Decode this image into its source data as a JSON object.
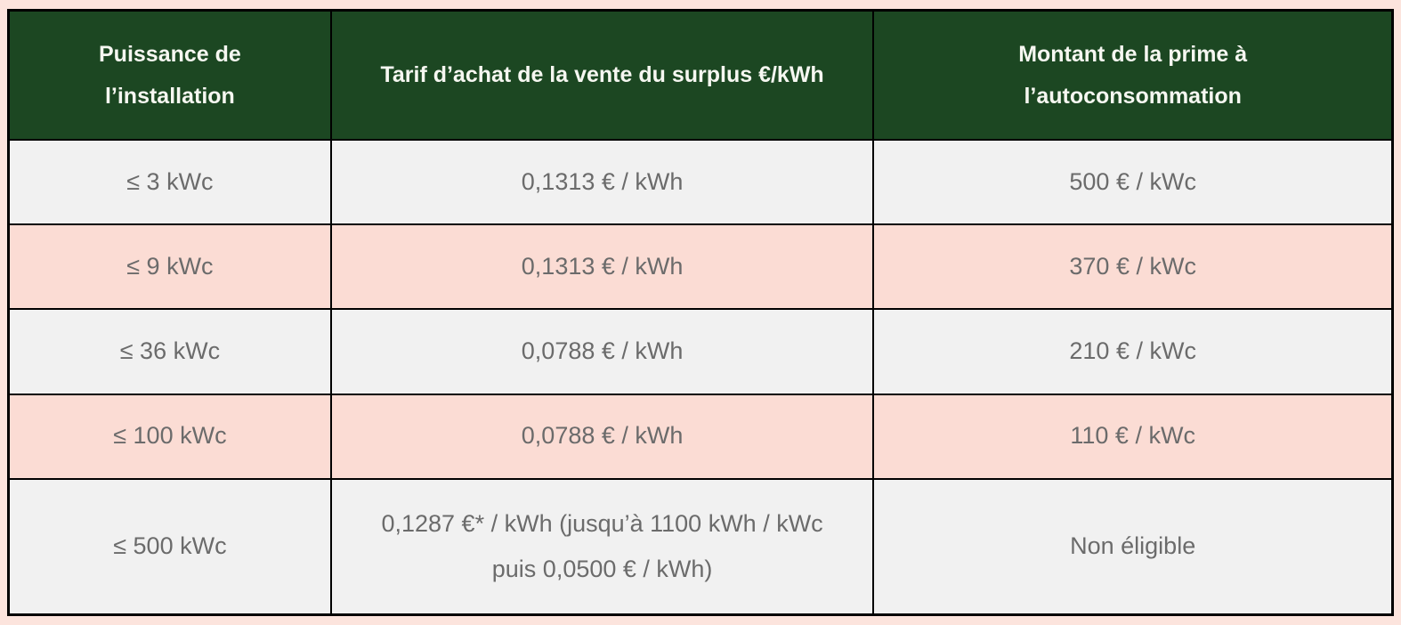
{
  "theme": {
    "page_background": "#fce4dd",
    "header_background": "#1c4722",
    "header_text_color": "#f6f7f1",
    "row_grey_background": "#f1f1f1",
    "row_pink_background": "#fbdcd4",
    "cell_text_color": "#6b6b6b",
    "grid_border_color": "#000000"
  },
  "chart_data": {
    "type": "table",
    "title": "",
    "columns": [
      "Puissance de l’installation",
      "Tarif d’achat de la vente du surplus €/kWh",
      "Montant de la prime à l’autoconsommation"
    ],
    "rows": [
      [
        "≤ 3 kWc",
        "0,1313 € / kWh",
        "500 € / kWc"
      ],
      [
        "≤ 9 kWc",
        "0,1313 € / kWh",
        "370 € / kWc"
      ],
      [
        "≤ 36 kWc",
        "0,0788 € / kWh",
        "210 € / kWc"
      ],
      [
        "≤ 100 kWc",
        "0,0788 € / kWh",
        "110 € / kWc"
      ],
      [
        "≤ 500 kWc",
        "0,1287 €* / kWh (jusqu’à 1100 kWh / kWc puis 0,0500 € / kWh)",
        "Non éligible"
      ]
    ],
    "row_background_pattern": [
      "grey",
      "pink",
      "grey",
      "pink",
      "grey"
    ]
  }
}
